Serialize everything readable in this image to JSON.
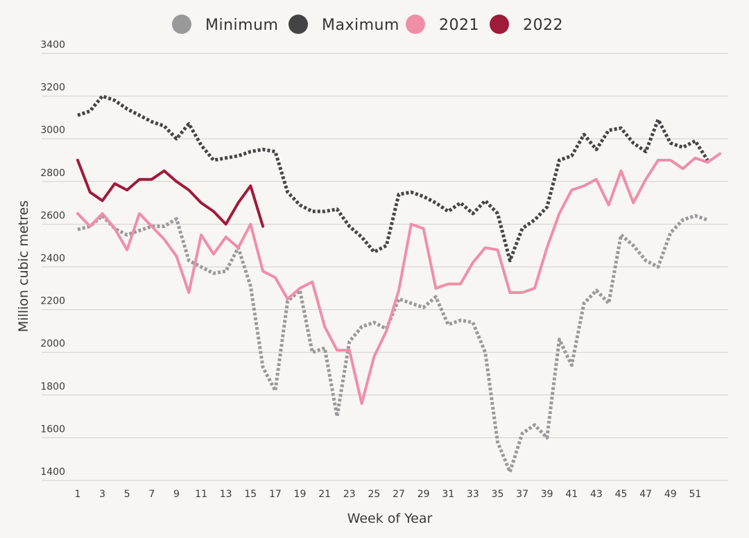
{
  "chart_data": {
    "type": "line",
    "xlabel": "Week of Year",
    "ylabel": "Million cubic metres",
    "ylim": [
      1400,
      3400
    ],
    "xlim": [
      1,
      53
    ],
    "y_ticks": [
      1400,
      1600,
      1800,
      2000,
      2200,
      2400,
      2600,
      2800,
      3000,
      3200,
      3400
    ],
    "x_ticks": [
      1,
      3,
      5,
      7,
      9,
      11,
      13,
      15,
      17,
      19,
      21,
      23,
      25,
      27,
      29,
      31,
      33,
      35,
      37,
      39,
      41,
      43,
      45,
      47,
      49,
      51
    ],
    "grid": "horizontal",
    "legend_position": "top-center",
    "series": [
      {
        "name": "Minimum",
        "color": "#999999",
        "style": "dotted",
        "x": [
          1,
          2,
          3,
          4,
          5,
          6,
          7,
          8,
          9,
          10,
          11,
          12,
          13,
          14,
          15,
          16,
          17,
          18,
          19,
          20,
          21,
          22,
          23,
          24,
          25,
          26,
          27,
          28,
          29,
          30,
          31,
          32,
          33,
          34,
          35,
          36,
          37,
          38,
          39,
          40,
          41,
          42,
          43,
          44,
          45,
          46,
          47,
          48,
          49,
          50,
          51,
          52
        ],
        "values": [
          2575,
          2590,
          2640,
          2580,
          2550,
          2570,
          2590,
          2590,
          2625,
          2430,
          2400,
          2370,
          2380,
          2490,
          2310,
          1930,
          1820,
          2240,
          2290,
          2000,
          2020,
          1700,
          2050,
          2120,
          2140,
          2110,
          2250,
          2230,
          2210,
          2260,
          2130,
          2150,
          2140,
          2000,
          1580,
          1440,
          1620,
          1660,
          1600,
          2060,
          1940,
          2230,
          2290,
          2230,
          2550,
          2500,
          2430,
          2400,
          2560,
          2620,
          2640,
          2620
        ]
      },
      {
        "name": "Maximum",
        "color": "#444444",
        "style": "dotted",
        "x": [
          1,
          2,
          3,
          4,
          5,
          6,
          7,
          8,
          9,
          10,
          11,
          12,
          13,
          14,
          15,
          16,
          17,
          18,
          19,
          20,
          21,
          22,
          23,
          24,
          25,
          26,
          27,
          28,
          29,
          30,
          31,
          32,
          33,
          34,
          35,
          36,
          37,
          38,
          39,
          40,
          41,
          42,
          43,
          44,
          45,
          46,
          47,
          48,
          49,
          50,
          51,
          52
        ],
        "values": [
          3110,
          3130,
          3200,
          3180,
          3140,
          3110,
          3080,
          3060,
          3000,
          3070,
          2970,
          2900,
          2910,
          2920,
          2940,
          2950,
          2940,
          2750,
          2690,
          2660,
          2660,
          2670,
          2590,
          2540,
          2470,
          2500,
          2740,
          2750,
          2730,
          2700,
          2660,
          2700,
          2650,
          2710,
          2650,
          2430,
          2580,
          2620,
          2680,
          2900,
          2920,
          3020,
          2950,
          3040,
          3050,
          2980,
          2940,
          3090,
          2980,
          2960,
          2990,
          2900
        ]
      },
      {
        "name": "2021",
        "color": "#f08ea8",
        "style": "solid",
        "x": [
          1,
          2,
          3,
          4,
          5,
          6,
          7,
          8,
          9,
          10,
          11,
          12,
          13,
          14,
          15,
          16,
          17,
          18,
          19,
          20,
          21,
          22,
          23,
          24,
          25,
          26,
          27,
          28,
          29,
          30,
          31,
          32,
          33,
          34,
          35,
          36,
          37,
          38,
          39,
          40,
          41,
          42,
          43,
          44,
          45,
          46,
          47,
          48,
          49,
          50,
          51,
          52,
          53
        ],
        "values": [
          2650,
          2590,
          2650,
          2580,
          2480,
          2650,
          2590,
          2530,
          2450,
          2280,
          2550,
          2460,
          2540,
          2490,
          2600,
          2380,
          2350,
          2250,
          2300,
          2330,
          2120,
          2010,
          2010,
          1760,
          1980,
          2100,
          2290,
          2600,
          2580,
          2300,
          2320,
          2320,
          2420,
          2490,
          2480,
          2280,
          2280,
          2300,
          2490,
          2650,
          2760,
          2780,
          2810,
          2690,
          2850,
          2700,
          2810,
          2900,
          2900,
          2860,
          2910,
          2890,
          2930
        ]
      },
      {
        "name": "2022",
        "color": "#a01a3a",
        "style": "solid",
        "x": [
          1,
          2,
          3,
          4,
          5,
          6,
          7,
          8,
          9,
          10,
          11,
          12,
          13,
          14,
          15,
          16
        ],
        "values": [
          2900,
          2750,
          2710,
          2790,
          2760,
          2810,
          2810,
          2850,
          2800,
          2760,
          2700,
          2660,
          2600,
          2700,
          2780,
          2590
        ]
      }
    ]
  }
}
